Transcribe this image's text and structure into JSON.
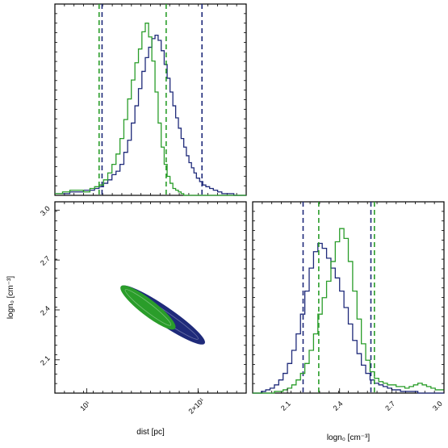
{
  "colors": {
    "blue": "#1f2a7a",
    "green": "#2a9d2a",
    "frame": "#000000"
  },
  "chart_data": [
    {
      "type": "histogram",
      "panel": "dist-marginal",
      "x_scale": "log",
      "xlim": [
        8.2,
        27
      ],
      "series": [
        {
          "name": "",
          "color": "blue",
          "x": [
            8.2,
            8.6,
            9.0,
            9.4,
            9.8,
            10.2,
            10.5,
            10.8,
            11.1,
            11.4,
            11.7,
            12.0,
            12.3,
            12.6,
            12.9,
            13.2,
            13.5,
            13.8,
            14.1,
            14.4,
            14.7,
            15.0,
            15.3,
            15.6,
            15.9,
            16.2,
            16.5,
            16.8,
            17.1,
            17.4,
            17.7,
            18.0,
            18.3,
            18.6,
            18.9,
            19.2,
            19.5,
            19.8,
            20.2,
            20.6,
            21.0,
            21.5,
            22.0,
            22.6,
            23.2,
            24.0,
            25.0,
            26.0
          ],
          "density": [
            0.01,
            0.01,
            0.02,
            0.02,
            0.03,
            0.03,
            0.04,
            0.05,
            0.07,
            0.09,
            0.12,
            0.14,
            0.18,
            0.25,
            0.32,
            0.42,
            0.52,
            0.62,
            0.72,
            0.8,
            0.86,
            0.91,
            0.93,
            0.9,
            0.84,
            0.76,
            0.68,
            0.6,
            0.52,
            0.45,
            0.39,
            0.33,
            0.28,
            0.23,
            0.19,
            0.16,
            0.13,
            0.1,
            0.08,
            0.06,
            0.05,
            0.04,
            0.03,
            0.02,
            0.01,
            0.01,
            0.0,
            0.0
          ],
          "interval": [
            11.0,
            20.5
          ]
        },
        {
          "name": "",
          "color": "green",
          "x": [
            8.2,
            8.6,
            9.0,
            9.4,
            9.8,
            10.2,
            10.5,
            10.8,
            11.1,
            11.4,
            11.7,
            12.0,
            12.3,
            12.6,
            12.9,
            13.2,
            13.5,
            13.8,
            14.1,
            14.4,
            14.7,
            15.0,
            15.3,
            15.6,
            15.9,
            16.2,
            16.5,
            16.8,
            17.1,
            17.4,
            17.7,
            18.0,
            18.3,
            18.6,
            18.9,
            19.2,
            19.5,
            19.8,
            20.2,
            20.6,
            21.0,
            21.5,
            22.0,
            22.6,
            23.2,
            24.0,
            25.0,
            26.0
          ],
          "density": [
            0.01,
            0.02,
            0.03,
            0.03,
            0.02,
            0.04,
            0.05,
            0.06,
            0.09,
            0.13,
            0.18,
            0.24,
            0.33,
            0.44,
            0.56,
            0.67,
            0.77,
            0.85,
            0.95,
            1.0,
            0.92,
            0.78,
            0.6,
            0.42,
            0.28,
            0.18,
            0.11,
            0.07,
            0.04,
            0.03,
            0.02,
            0.01,
            0.0,
            0.0,
            0.0,
            0.0,
            0.0,
            0.0,
            0.0,
            0.0,
            0.0,
            0.0,
            0.0,
            0.0,
            0.0,
            0.0,
            0.0,
            0.0
          ],
          "interval": [
            10.8,
            16.4
          ]
        }
      ]
    },
    {
      "type": "contour",
      "panel": "dist-logn0-joint",
      "x_scale": "log",
      "xlim": [
        8.2,
        27
      ],
      "ylim": [
        1.9,
        3.05
      ],
      "xlabel": "dist [pc]",
      "ylabel": "logn₀ [cm⁻³]",
      "xticks": [
        {
          "value": 10,
          "label": "10¹"
        },
        {
          "value": 20,
          "label": "2×10¹"
        }
      ],
      "yticks": [
        {
          "value": 2.1,
          "label": "2.1"
        },
        {
          "value": 2.4,
          "label": "2.4"
        },
        {
          "value": 2.7,
          "label": "2.7"
        },
        {
          "value": 3.0,
          "label": "3.0"
        }
      ],
      "series": [
        {
          "name": "",
          "color": "blue",
          "ridge": [
            {
              "x": 12.4,
              "y": 2.54
            },
            {
              "x": 20.8,
              "y": 2.2
            }
          ],
          "width": 0.045
        },
        {
          "name": "",
          "color": "green",
          "ridge": [
            {
              "x": 12.4,
              "y": 2.54
            },
            {
              "x": 17.3,
              "y": 2.29
            }
          ],
          "width": 0.04
        }
      ]
    },
    {
      "type": "histogram",
      "panel": "logn0-marginal",
      "xlim": [
        1.9,
        3.0
      ],
      "xlabel": "logn₀ [cm⁻³]",
      "xticks": [
        {
          "value": 2.1,
          "label": "2.1"
        },
        {
          "value": 2.4,
          "label": "2.4"
        },
        {
          "value": 2.7,
          "label": "2.7"
        },
        {
          "value": 3.0,
          "label": "3.0"
        }
      ],
      "series": [
        {
          "name": "",
          "color": "blue",
          "x": [
            1.9,
            1.925,
            1.95,
            1.975,
            2.0,
            2.025,
            2.05,
            2.075,
            2.1,
            2.125,
            2.15,
            2.175,
            2.2,
            2.225,
            2.25,
            2.275,
            2.3,
            2.325,
            2.35,
            2.375,
            2.4,
            2.425,
            2.45,
            2.475,
            2.5,
            2.525,
            2.55,
            2.575,
            2.6,
            2.625,
            2.65,
            2.675,
            2.7,
            2.725,
            2.75,
            2.775,
            2.8,
            2.825,
            2.85,
            2.875,
            2.9,
            2.925,
            2.95,
            2.975
          ],
          "density": [
            0.0,
            0.0,
            0.01,
            0.02,
            0.03,
            0.05,
            0.08,
            0.12,
            0.18,
            0.26,
            0.36,
            0.48,
            0.62,
            0.76,
            0.86,
            0.91,
            0.88,
            0.82,
            0.76,
            0.7,
            0.62,
            0.52,
            0.42,
            0.32,
            0.24,
            0.17,
            0.12,
            0.08,
            0.06,
            0.05,
            0.04,
            0.03,
            0.02,
            0.02,
            0.01,
            0.01,
            0.01,
            0.01,
            0.0,
            0.0,
            0.0,
            0.0,
            0.0,
            0.0
          ],
          "interval": [
            2.19,
            2.58
          ]
        },
        {
          "name": "",
          "color": "green",
          "x": [
            1.9,
            1.925,
            1.95,
            1.975,
            2.0,
            2.025,
            2.05,
            2.075,
            2.1,
            2.125,
            2.15,
            2.175,
            2.2,
            2.225,
            2.25,
            2.275,
            2.3,
            2.325,
            2.35,
            2.375,
            2.4,
            2.425,
            2.45,
            2.475,
            2.5,
            2.525,
            2.55,
            2.575,
            2.6,
            2.625,
            2.65,
            2.675,
            2.7,
            2.725,
            2.75,
            2.775,
            2.8,
            2.825,
            2.85,
            2.875,
            2.9,
            2.925,
            2.95,
            2.975
          ],
          "density": [
            0.0,
            0.0,
            0.0,
            0.0,
            0.0,
            0.01,
            0.01,
            0.02,
            0.03,
            0.05,
            0.08,
            0.12,
            0.18,
            0.26,
            0.36,
            0.48,
            0.58,
            0.68,
            0.8,
            0.92,
            1.0,
            0.94,
            0.8,
            0.62,
            0.45,
            0.3,
            0.2,
            0.13,
            0.09,
            0.07,
            0.06,
            0.05,
            0.05,
            0.04,
            0.04,
            0.03,
            0.04,
            0.05,
            0.06,
            0.05,
            0.04,
            0.03,
            0.02,
            0.02
          ],
          "interval": [
            2.28,
            2.6
          ]
        }
      ]
    }
  ]
}
